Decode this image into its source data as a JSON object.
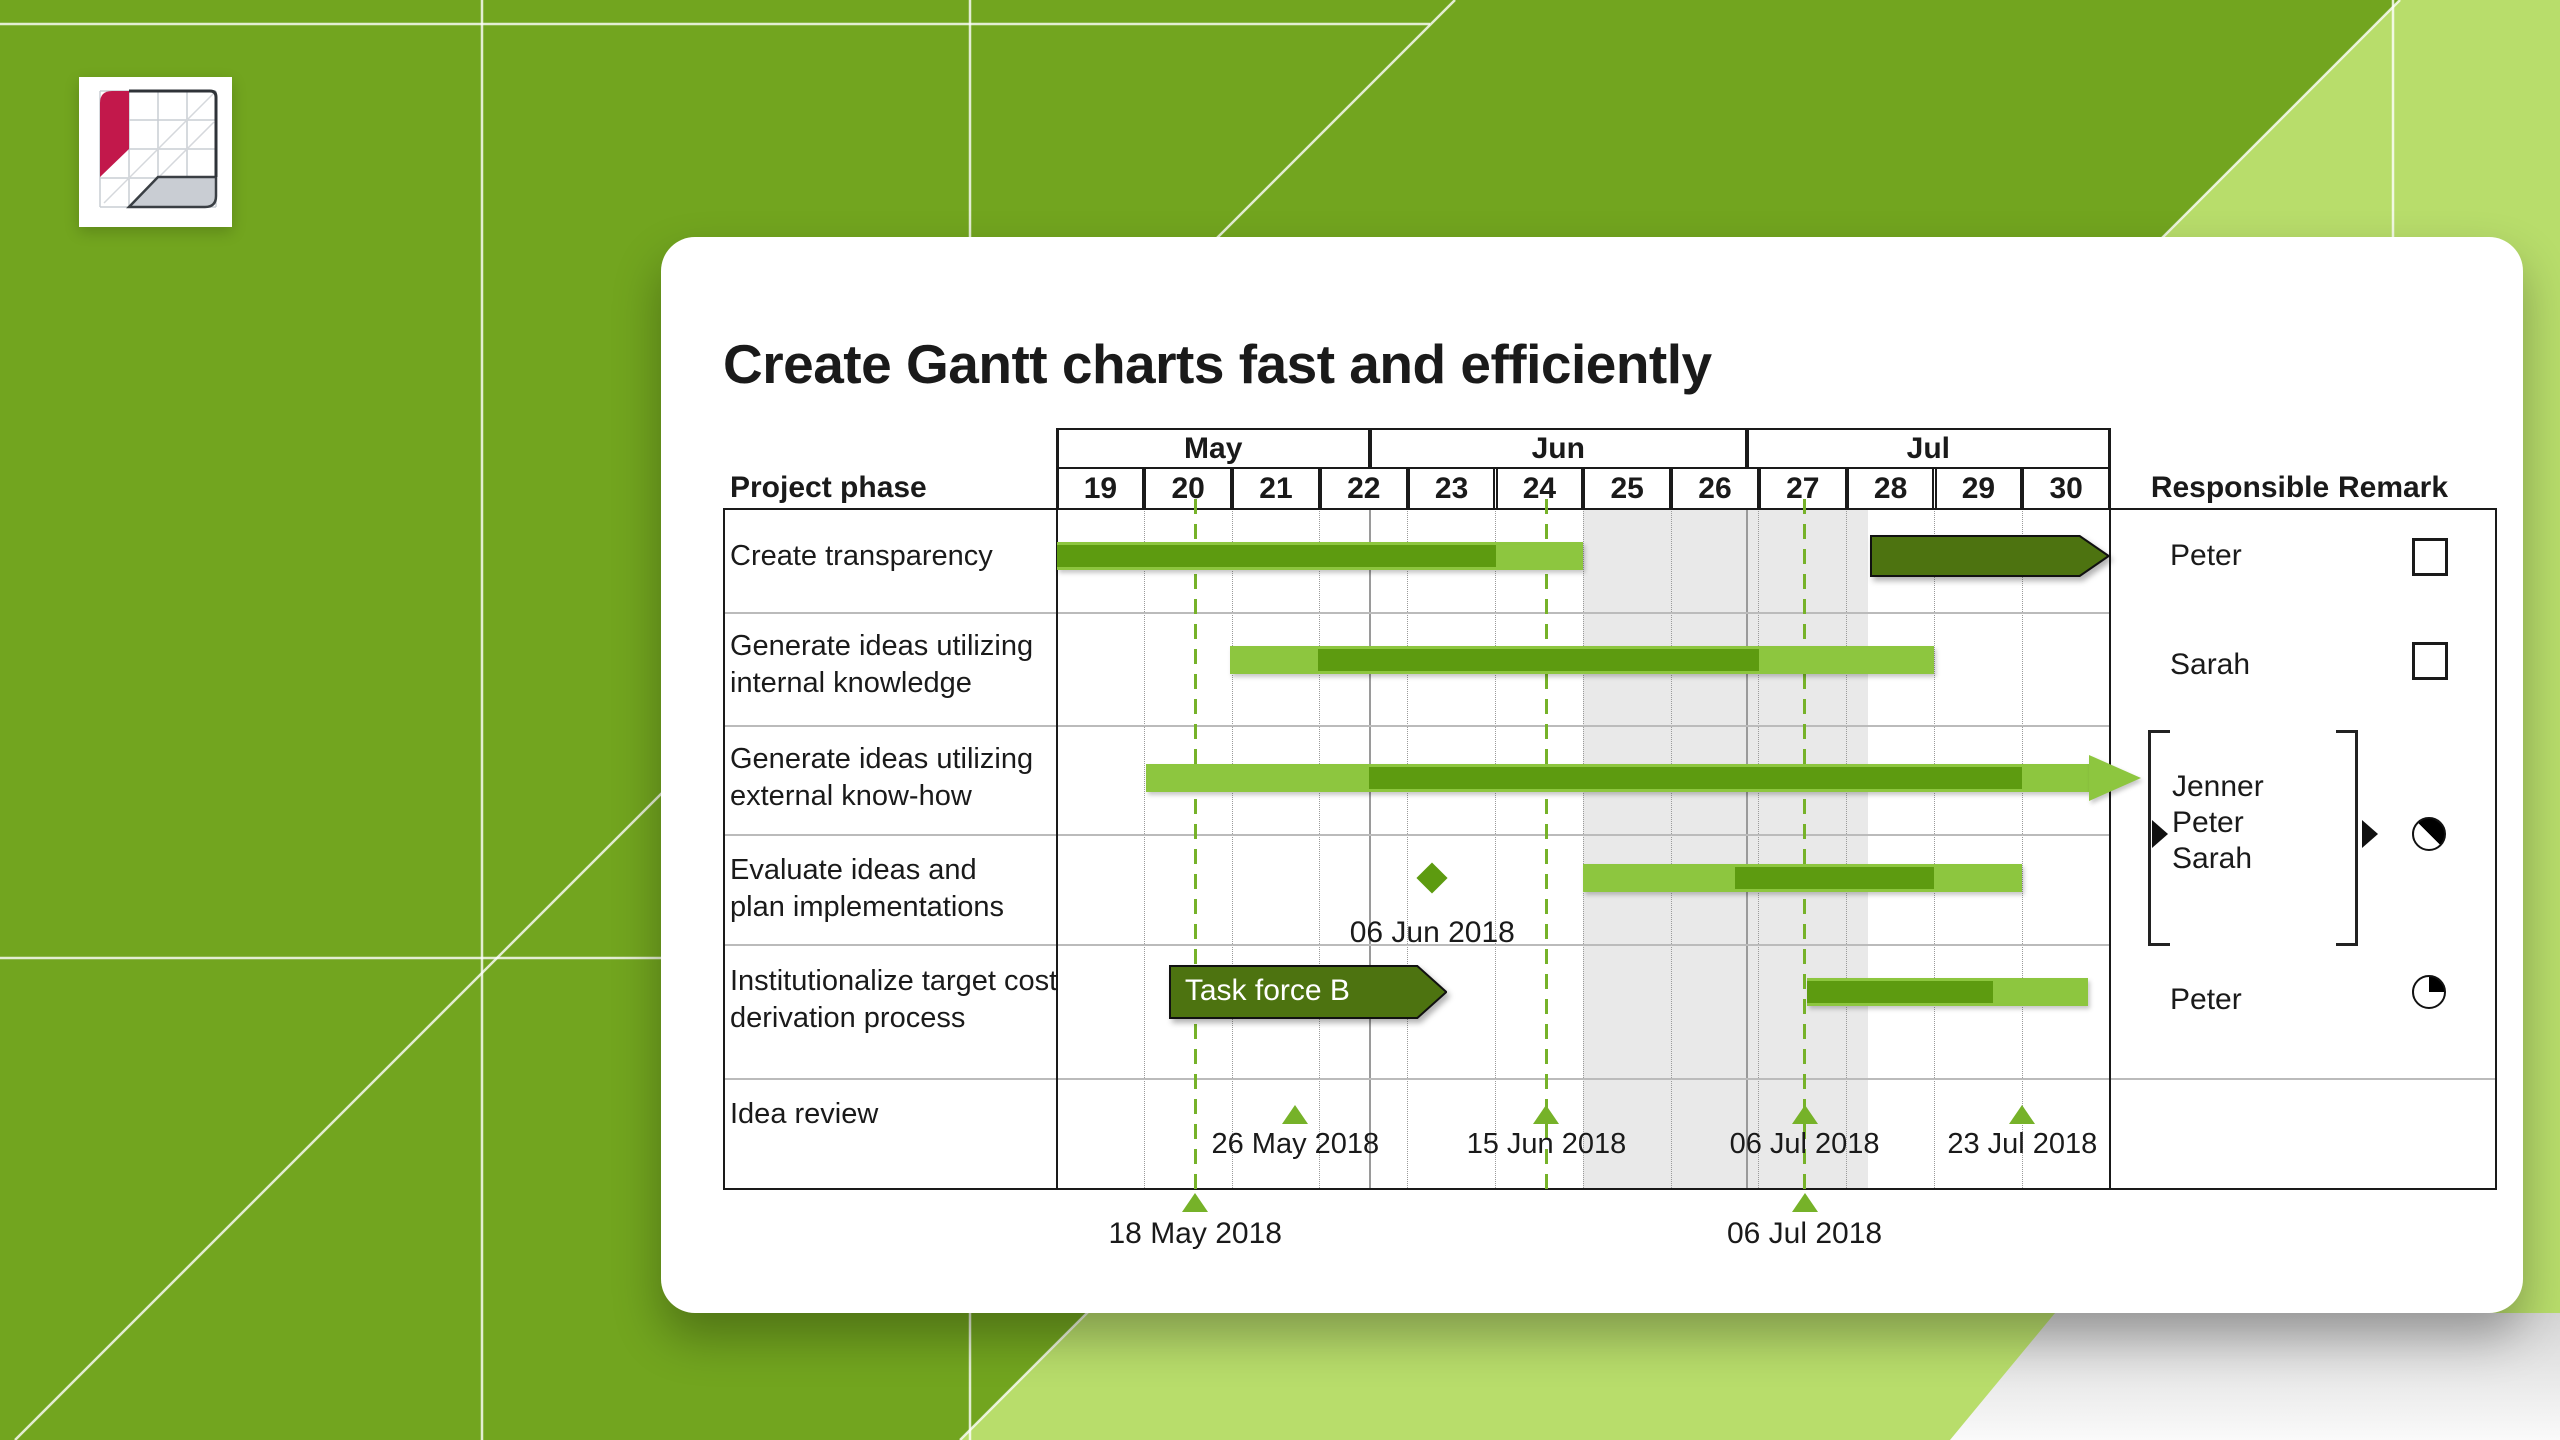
{
  "title": "Create Gantt charts fast and efficiently",
  "logo": {
    "icon": "gantt-grid-logo"
  },
  "table": {
    "phase_header": "Project phase",
    "responsible_header": "Responsible",
    "remark_header": "Remark"
  },
  "colors": {
    "bg_green": "#72A51F",
    "bg_light_green": "#B8DD6B",
    "grid_line_white": "rgba(255,255,255,0.8)",
    "bar_light": "#8DC63F",
    "bar_dark": "#5D9B10",
    "bar_olive": "#4D7310",
    "accent_green": "#76B229",
    "shading_grey": "#E9E9E9",
    "border_black": "#1A1A1A",
    "grid_grey": "#9A9A9A",
    "separator_grey": "#BBBBBB",
    "logo_red": "#C2184B",
    "logo_grey": "#C9CDD3",
    "text": "#1A1A1A"
  },
  "chart_data": {
    "type": "bar",
    "variant": "gantt",
    "x_unit": "weeks offset from start of calendar week 19, 2018",
    "weeks": [
      "19",
      "20",
      "21",
      "22",
      "23",
      "24",
      "25",
      "26",
      "27",
      "28",
      "29",
      "30"
    ],
    "months": [
      {
        "label": "May",
        "from": 0,
        "to": 3.57
      },
      {
        "label": "Jun",
        "from": 3.57,
        "to": 7.86
      },
      {
        "label": "Jul",
        "from": 7.86,
        "to": 12
      }
    ],
    "shading": {
      "from": 6.0,
      "to": 9.24
    },
    "deadline_lines": [
      {
        "at": 1.58,
        "label": "18 May 2018",
        "below_table": true
      },
      {
        "at": 5.58,
        "label": "15 Jun 2018",
        "below_table": false
      },
      {
        "at": 8.52,
        "label": "06 Jul 2018",
        "below_table": true
      }
    ],
    "rows": [
      {
        "phase_lines": [
          "Create transparency"
        ],
        "responsible": "Peter",
        "remark": "checkbox-empty",
        "bars": [
          {
            "kind": "task",
            "start": 0,
            "end": 6.0,
            "done_from": 0,
            "done_to": 5.0
          },
          {
            "kind": "fixed-block",
            "start": 9.27,
            "end": 12.0
          }
        ]
      },
      {
        "phase_lines": [
          "Generate ideas utilizing",
          "internal knowledge"
        ],
        "responsible": "Sarah",
        "remark": "checkbox-empty",
        "bars": [
          {
            "kind": "task",
            "start": 1.98,
            "end": 10.0,
            "done_from": 2.98,
            "done_to": 8.0
          }
        ]
      },
      {
        "phase_lines": [
          "Generate ideas utilizing",
          "external know-how"
        ],
        "responsible": null,
        "remark": null,
        "bars": [
          {
            "kind": "task-arrow",
            "start": 1.02,
            "end": 12.35,
            "done_from": 3.56,
            "done_to": 11.0
          }
        ]
      },
      {
        "phase_lines": [
          "Evaluate ideas and",
          "plan implementations"
        ],
        "responsible": null,
        "remark": null,
        "milestones": [
          {
            "at": 4.28,
            "label": "06 Jun 2018",
            "style": "diamond"
          }
        ],
        "bars": [
          {
            "kind": "task",
            "start": 6.0,
            "end": 11.0,
            "done_from": 7.73,
            "done_to": 10.0
          }
        ]
      },
      {
        "phase_lines": [
          "Institutionalize target cost",
          "derivation process"
        ],
        "responsible": "Peter",
        "remark": "progress-25",
        "callout": {
          "label": "Task force B",
          "start": 1.28,
          "end": 4.45
        },
        "bars": [
          {
            "kind": "task",
            "start": 8.55,
            "end": 11.75,
            "done_from": 8.55,
            "done_to": 10.67
          }
        ]
      },
      {
        "phase_lines": [
          "Idea review"
        ],
        "responsible": null,
        "remark": null,
        "milestones": [
          {
            "at": 2.72,
            "label": "26 May 2018",
            "style": "triangle"
          },
          {
            "at": 5.58,
            "label": "15 Jun 2018",
            "style": "triangle"
          },
          {
            "at": 8.52,
            "label": "06 Jul 2018",
            "style": "triangle"
          },
          {
            "at": 11.0,
            "label": "23 Jul 2018",
            "style": "triangle"
          }
        ]
      }
    ],
    "group": {
      "applies_to_rows": [
        2,
        3
      ],
      "names": [
        "Jenner",
        "Peter",
        "Sarah"
      ],
      "remark": "progress-50"
    }
  }
}
